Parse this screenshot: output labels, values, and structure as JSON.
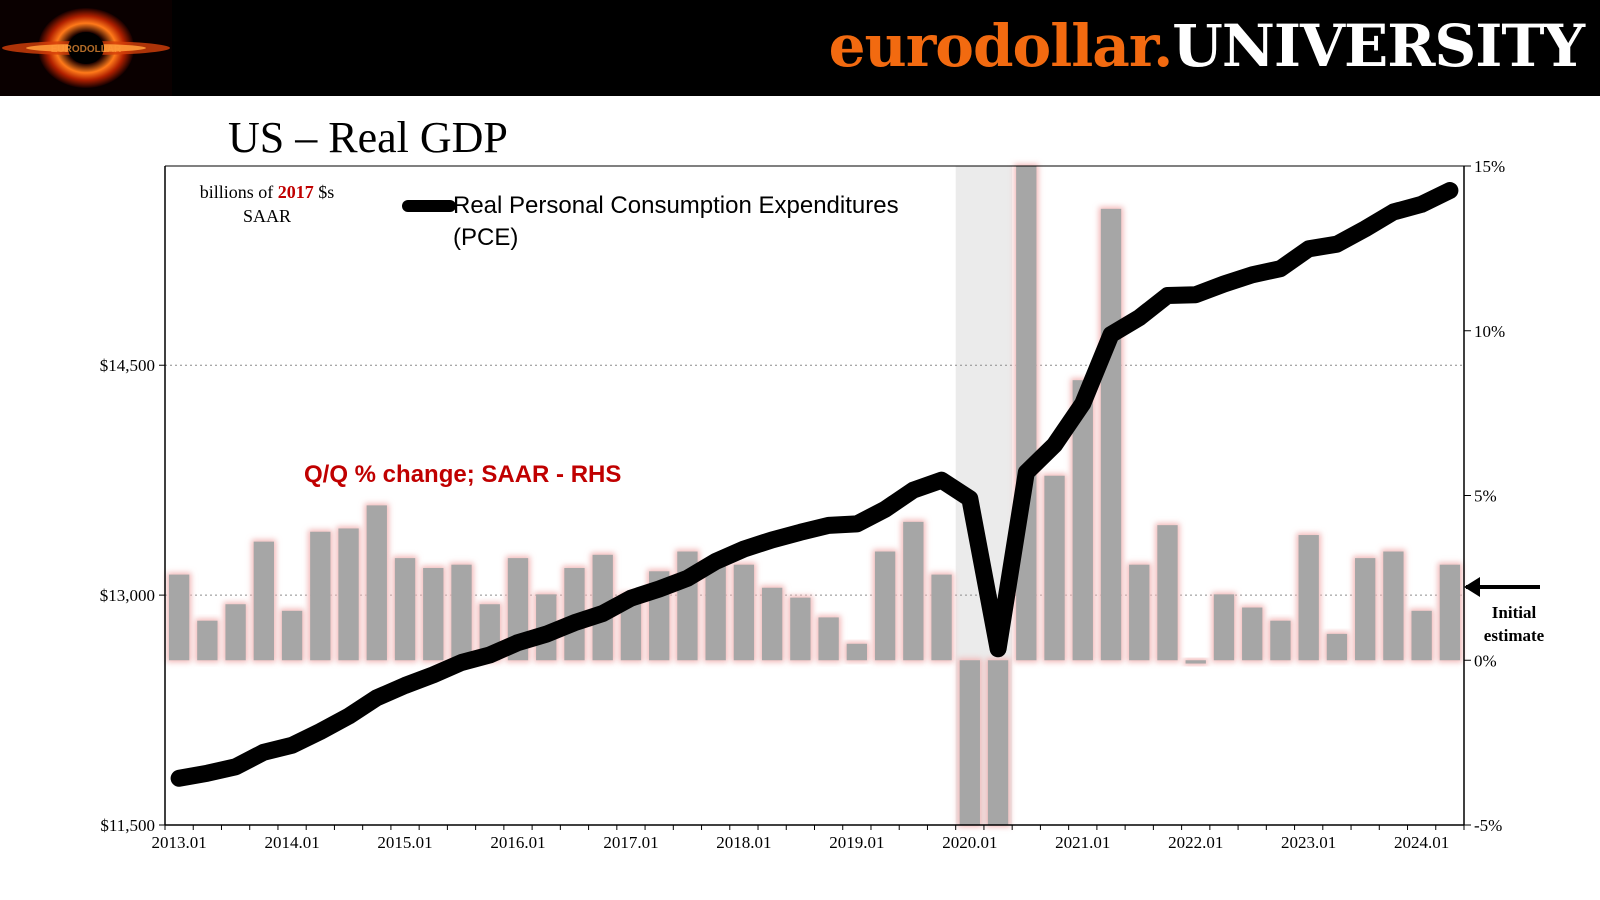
{
  "header": {
    "brand_part1": "eurodollar.",
    "brand_part2": "UNIVERSITY",
    "logo_text": "EURODOLLAR",
    "colors": {
      "background": "#000000",
      "brand_orange": "#f26a10",
      "brand_white": "#ffffff"
    }
  },
  "chart_data": {
    "type": "bar+line",
    "title": "US – Real GDP",
    "units_note": {
      "line1_prefix": "billions of ",
      "line1_year": "2017",
      "line1_suffix": " $s",
      "line2": "SAAR"
    },
    "legend": {
      "series_name_line1": "Real Personal Consumption Expenditures",
      "series_name_line2": "(PCE)"
    },
    "bar_annotation": "Q/Q % change; SAAR - RHS",
    "estimate_annotation": {
      "line1": "Initial",
      "line2": "estimate"
    },
    "x_tick_labels": [
      "2013.01",
      "2014.01",
      "2015.01",
      "2016.01",
      "2017.01",
      "2018.01",
      "2019.01",
      "2020.01",
      "2021.01",
      "2022.01",
      "2023.01",
      "2024.01"
    ],
    "quarters": [
      "2013.01",
      "2013.02",
      "2013.03",
      "2013.04",
      "2014.01",
      "2014.02",
      "2014.03",
      "2014.04",
      "2015.01",
      "2015.02",
      "2015.03",
      "2015.04",
      "2016.01",
      "2016.02",
      "2016.03",
      "2016.04",
      "2017.01",
      "2017.02",
      "2017.03",
      "2017.04",
      "2018.01",
      "2018.02",
      "2018.03",
      "2018.04",
      "2019.01",
      "2019.02",
      "2019.03",
      "2019.04",
      "2020.01",
      "2020.02",
      "2020.03",
      "2020.04",
      "2021.01",
      "2021.02",
      "2021.03",
      "2021.04",
      "2022.01",
      "2022.02",
      "2022.03",
      "2022.04",
      "2023.01",
      "2023.02",
      "2023.03",
      "2023.04",
      "2024.01",
      "2024.02"
    ],
    "left_axis": {
      "ylim": [
        11500,
        15800
      ],
      "ticks": [
        11500,
        13000,
        14500
      ],
      "tick_labels": [
        "$11,500",
        "$13,000",
        "$14,500"
      ]
    },
    "right_axis": {
      "ylim": [
        -5,
        15
      ],
      "ticks": [
        -5,
        0,
        5,
        10,
        15
      ],
      "tick_labels": [
        "-5%",
        "0%",
        "5%",
        "10%",
        "15%"
      ]
    },
    "series": [
      {
        "kind": "line",
        "axis": "left",
        "values": [
          11805,
          11838,
          11880,
          11975,
          12020,
          12110,
          12210,
          12330,
          12410,
          12480,
          12560,
          12610,
          12690,
          12745,
          12820,
          12880,
          12980,
          13040,
          13110,
          13220,
          13300,
          13360,
          13410,
          13455,
          13465,
          13560,
          13685,
          13750,
          13630,
          12650,
          13800,
          13980,
          14250,
          14700,
          14810,
          14955,
          14960,
          15030,
          15090,
          15130,
          15260,
          15290,
          15390,
          15500,
          15550,
          15640
        ]
      },
      {
        "kind": "bar",
        "axis": "right",
        "values": [
          2.6,
          1.2,
          1.7,
          3.6,
          1.5,
          3.9,
          4.0,
          4.7,
          3.1,
          2.8,
          2.9,
          1.7,
          3.1,
          2.0,
          2.8,
          3.2,
          2.0,
          2.7,
          3.3,
          2.9,
          2.9,
          2.2,
          1.9,
          1.3,
          0.5,
          3.3,
          4.2,
          2.6,
          -5.5,
          -5.5,
          15.0,
          5.6,
          8.5,
          13.7,
          2.9,
          4.1,
          -0.1,
          2.0,
          1.6,
          1.2,
          3.8,
          0.8,
          3.1,
          3.3,
          1.5,
          2.9
        ]
      }
    ],
    "recession_shading": {
      "start": "2020.01",
      "end": "2020.02"
    },
    "grid": {
      "horizontal": true,
      "style": "dotted"
    },
    "colors": {
      "line": "#000000",
      "bars": "#a6a6a6",
      "bar_glow": "#f2b8b8",
      "shading": "#ebebeb",
      "rhs_label": "#c00000"
    }
  }
}
